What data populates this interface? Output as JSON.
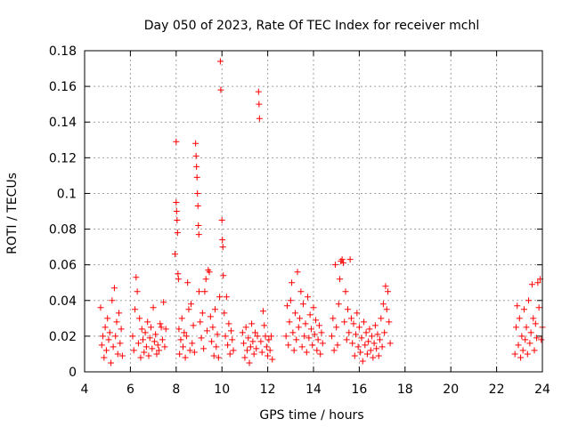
{
  "chart_data": {
    "type": "scatter",
    "title": "Day 050 of 2023, Rate Of TEC Index for receiver mchl",
    "xlabel": "GPS time / hours",
    "ylabel": "ROTI / TECUs",
    "xlim": [
      4,
      24
    ],
    "ylim": [
      0,
      0.18
    ],
    "xticks": [
      4,
      6,
      8,
      10,
      12,
      14,
      16,
      18,
      20,
      22,
      24
    ],
    "yticks": [
      0,
      0.02,
      0.04,
      0.06,
      0.08,
      0.1,
      0.12,
      0.14,
      0.16,
      0.18
    ],
    "xtick_labels": [
      "4",
      "6",
      "8",
      "10",
      "12",
      "14",
      "16",
      "18",
      "20",
      "22",
      "24"
    ],
    "ytick_labels": [
      "0",
      "0.02",
      "0.04",
      "0.06",
      "0.08",
      "0.1",
      "0.12",
      "0.14",
      "0.16",
      "0.18"
    ],
    "grid": true,
    "marker": "+",
    "color": "#ff0000",
    "series": [
      {
        "name": "ROTI",
        "points": [
          [
            4.7,
            0.036
          ],
          [
            4.75,
            0.015
          ],
          [
            4.8,
            0.02
          ],
          [
            4.85,
            0.008
          ],
          [
            4.9,
            0.025
          ],
          [
            4.95,
            0.012
          ],
          [
            5.0,
            0.03
          ],
          [
            5.05,
            0.018
          ],
          [
            5.1,
            0.022
          ],
          [
            5.15,
            0.005
          ],
          [
            5.2,
            0.04
          ],
          [
            5.25,
            0.014
          ],
          [
            5.3,
            0.047
          ],
          [
            5.35,
            0.02
          ],
          [
            5.4,
            0.028
          ],
          [
            5.45,
            0.01
          ],
          [
            5.5,
            0.033
          ],
          [
            5.55,
            0.016
          ],
          [
            5.6,
            0.024
          ],
          [
            5.65,
            0.009
          ],
          [
            6.1,
            0.02
          ],
          [
            6.15,
            0.012
          ],
          [
            6.2,
            0.035
          ],
          [
            6.25,
            0.053
          ],
          [
            6.3,
            0.045
          ],
          [
            6.35,
            0.016
          ],
          [
            6.4,
            0.03
          ],
          [
            6.45,
            0.008
          ],
          [
            6.5,
            0.024
          ],
          [
            6.55,
            0.018
          ],
          [
            6.6,
            0.011
          ],
          [
            6.65,
            0.022
          ],
          [
            6.7,
            0.014
          ],
          [
            6.75,
            0.028
          ],
          [
            6.8,
            0.009
          ],
          [
            6.85,
            0.019
          ],
          [
            6.9,
            0.025
          ],
          [
            6.95,
            0.013
          ],
          [
            7.0,
            0.036
          ],
          [
            7.05,
            0.017
          ],
          [
            7.1,
            0.021
          ],
          [
            7.15,
            0.01
          ],
          [
            7.2,
            0.015
          ],
          [
            7.25,
            0.012
          ],
          [
            7.3,
            0.027
          ],
          [
            7.35,
            0.025
          ],
          [
            7.4,
            0.018
          ],
          [
            7.45,
            0.039
          ],
          [
            7.5,
            0.014
          ],
          [
            7.55,
            0.024
          ],
          [
            7.95,
            0.066
          ],
          [
            8.0,
            0.129
          ],
          [
            8.0,
            0.095
          ],
          [
            8.02,
            0.09
          ],
          [
            8.04,
            0.085
          ],
          [
            8.06,
            0.078
          ],
          [
            8.08,
            0.055
          ],
          [
            8.1,
            0.052
          ],
          [
            8.12,
            0.024
          ],
          [
            8.15,
            0.01
          ],
          [
            8.2,
            0.018
          ],
          [
            8.25,
            0.03
          ],
          [
            8.3,
            0.014
          ],
          [
            8.35,
            0.022
          ],
          [
            8.4,
            0.008
          ],
          [
            8.45,
            0.02
          ],
          [
            8.5,
            0.05
          ],
          [
            8.55,
            0.035
          ],
          [
            8.6,
            0.012
          ],
          [
            8.65,
            0.038
          ],
          [
            8.7,
            0.016
          ],
          [
            8.75,
            0.026
          ],
          [
            8.8,
            0.011
          ],
          [
            8.85,
            0.128
          ],
          [
            8.87,
            0.121
          ],
          [
            8.89,
            0.115
          ],
          [
            8.91,
            0.109
          ],
          [
            8.93,
            0.1
          ],
          [
            8.95,
            0.093
          ],
          [
            8.97,
            0.082
          ],
          [
            8.99,
            0.077
          ],
          [
            9.0,
            0.045
          ],
          [
            9.05,
            0.028
          ],
          [
            9.1,
            0.019
          ],
          [
            9.15,
            0.033
          ],
          [
            9.2,
            0.013
          ],
          [
            9.25,
            0.045
          ],
          [
            9.3,
            0.052
          ],
          [
            9.35,
            0.023
          ],
          [
            9.4,
            0.057
          ],
          [
            9.45,
            0.056
          ],
          [
            9.5,
            0.031
          ],
          [
            9.55,
            0.017
          ],
          [
            9.6,
            0.025
          ],
          [
            9.65,
            0.009
          ],
          [
            9.7,
            0.035
          ],
          [
            9.75,
            0.014
          ],
          [
            9.8,
            0.021
          ],
          [
            9.85,
            0.008
          ],
          [
            9.9,
            0.042
          ],
          [
            9.93,
            0.174
          ],
          [
            9.95,
            0.158
          ],
          [
            10.0,
            0.085
          ],
          [
            10.02,
            0.074
          ],
          [
            10.04,
            0.07
          ],
          [
            10.06,
            0.054
          ],
          [
            10.1,
            0.033
          ],
          [
            10.15,
            0.02
          ],
          [
            10.2,
            0.042
          ],
          [
            10.25,
            0.015
          ],
          [
            10.3,
            0.027
          ],
          [
            10.35,
            0.01
          ],
          [
            10.4,
            0.023
          ],
          [
            10.45,
            0.018
          ],
          [
            10.5,
            0.012
          ],
          [
            10.9,
            0.022
          ],
          [
            10.95,
            0.016
          ],
          [
            11.0,
            0.008
          ],
          [
            11.05,
            0.025
          ],
          [
            11.1,
            0.012
          ],
          [
            11.15,
            0.019
          ],
          [
            11.2,
            0.005
          ],
          [
            11.25,
            0.014
          ],
          [
            11.3,
            0.027
          ],
          [
            11.35,
            0.017
          ],
          [
            11.4,
            0.01
          ],
          [
            11.45,
            0.022
          ],
          [
            11.5,
            0.013
          ],
          [
            11.55,
            0.02
          ],
          [
            11.6,
            0.157
          ],
          [
            11.62,
            0.15
          ],
          [
            11.64,
            0.142
          ],
          [
            11.7,
            0.017
          ],
          [
            11.75,
            0.011
          ],
          [
            11.8,
            0.034
          ],
          [
            11.85,
            0.026
          ],
          [
            11.9,
            0.02
          ],
          [
            11.95,
            0.014
          ],
          [
            12.0,
            0.009
          ],
          [
            12.05,
            0.018
          ],
          [
            12.1,
            0.012
          ],
          [
            12.15,
            0.02
          ],
          [
            12.2,
            0.007
          ],
          [
            12.8,
            0.02
          ],
          [
            12.85,
            0.037
          ],
          [
            12.9,
            0.015
          ],
          [
            12.95,
            0.028
          ],
          [
            13.0,
            0.04
          ],
          [
            13.05,
            0.05
          ],
          [
            13.1,
            0.022
          ],
          [
            13.15,
            0.012
          ],
          [
            13.2,
            0.033
          ],
          [
            13.25,
            0.018
          ],
          [
            13.3,
            0.056
          ],
          [
            13.35,
            0.025
          ],
          [
            13.4,
            0.03
          ],
          [
            13.45,
            0.045
          ],
          [
            13.5,
            0.014
          ],
          [
            13.55,
            0.038
          ],
          [
            13.6,
            0.02
          ],
          [
            13.65,
            0.027
          ],
          [
            13.7,
            0.011
          ],
          [
            13.75,
            0.042
          ],
          [
            13.8,
            0.019
          ],
          [
            13.85,
            0.032
          ],
          [
            13.9,
            0.024
          ],
          [
            13.95,
            0.015
          ],
          [
            14.0,
            0.036
          ],
          [
            14.05,
            0.021
          ],
          [
            14.1,
            0.029
          ],
          [
            14.15,
            0.012
          ],
          [
            14.2,
            0.018
          ],
          [
            14.25,
            0.026
          ],
          [
            14.3,
            0.01
          ],
          [
            14.35,
            0.022
          ],
          [
            14.4,
            0.016
          ],
          [
            14.8,
            0.02
          ],
          [
            14.85,
            0.03
          ],
          [
            14.9,
            0.012
          ],
          [
            14.95,
            0.06
          ],
          [
            15.0,
            0.025
          ],
          [
            15.05,
            0.015
          ],
          [
            15.1,
            0.038
          ],
          [
            15.15,
            0.052
          ],
          [
            15.2,
            0.062
          ],
          [
            15.25,
            0.063
          ],
          [
            15.3,
            0.061
          ],
          [
            15.35,
            0.028
          ],
          [
            15.4,
            0.045
          ],
          [
            15.45,
            0.018
          ],
          [
            15.5,
            0.035
          ],
          [
            15.55,
            0.022
          ],
          [
            15.6,
            0.063
          ],
          [
            15.65,
            0.03
          ],
          [
            15.7,
            0.016
          ],
          [
            15.75,
            0.027
          ],
          [
            15.8,
            0.009
          ],
          [
            15.85,
            0.021
          ],
          [
            15.9,
            0.033
          ],
          [
            15.95,
            0.014
          ],
          [
            16.0,
            0.025
          ],
          [
            16.05,
            0.011
          ],
          [
            16.1,
            0.019
          ],
          [
            16.15,
            0.006
          ],
          [
            16.2,
            0.028
          ],
          [
            16.25,
            0.015
          ],
          [
            16.3,
            0.022
          ],
          [
            16.35,
            0.01
          ],
          [
            16.4,
            0.017
          ],
          [
            16.45,
            0.024
          ],
          [
            16.5,
            0.012
          ],
          [
            16.55,
            0.02
          ],
          [
            16.6,
            0.008
          ],
          [
            16.65,
            0.016
          ],
          [
            16.7,
            0.026
          ],
          [
            16.75,
            0.013
          ],
          [
            16.8,
            0.021
          ],
          [
            16.85,
            0.009
          ],
          [
            16.9,
            0.018
          ],
          [
            16.95,
            0.03
          ],
          [
            17.0,
            0.014
          ],
          [
            17.05,
            0.038
          ],
          [
            17.1,
            0.022
          ],
          [
            17.15,
            0.048
          ],
          [
            17.2,
            0.035
          ],
          [
            17.25,
            0.045
          ],
          [
            17.3,
            0.028
          ],
          [
            17.35,
            0.016
          ],
          [
            22.8,
            0.01
          ],
          [
            22.85,
            0.025
          ],
          [
            22.9,
            0.037
          ],
          [
            22.95,
            0.015
          ],
          [
            23.0,
            0.03
          ],
          [
            23.05,
            0.008
          ],
          [
            23.1,
            0.02
          ],
          [
            23.15,
            0.012
          ],
          [
            23.2,
            0.035
          ],
          [
            23.25,
            0.018
          ],
          [
            23.3,
            0.025
          ],
          [
            23.35,
            0.01
          ],
          [
            23.4,
            0.04
          ],
          [
            23.45,
            0.016
          ],
          [
            23.5,
            0.022
          ],
          [
            23.55,
            0.049
          ],
          [
            23.6,
            0.03
          ],
          [
            23.65,
            0.012
          ],
          [
            23.7,
            0.027
          ],
          [
            23.75,
            0.019
          ],
          [
            23.8,
            0.05
          ],
          [
            23.85,
            0.036
          ],
          [
            23.9,
            0.052
          ],
          [
            23.95,
            0.018
          ],
          [
            24.0,
            0.025
          ]
        ]
      }
    ]
  }
}
